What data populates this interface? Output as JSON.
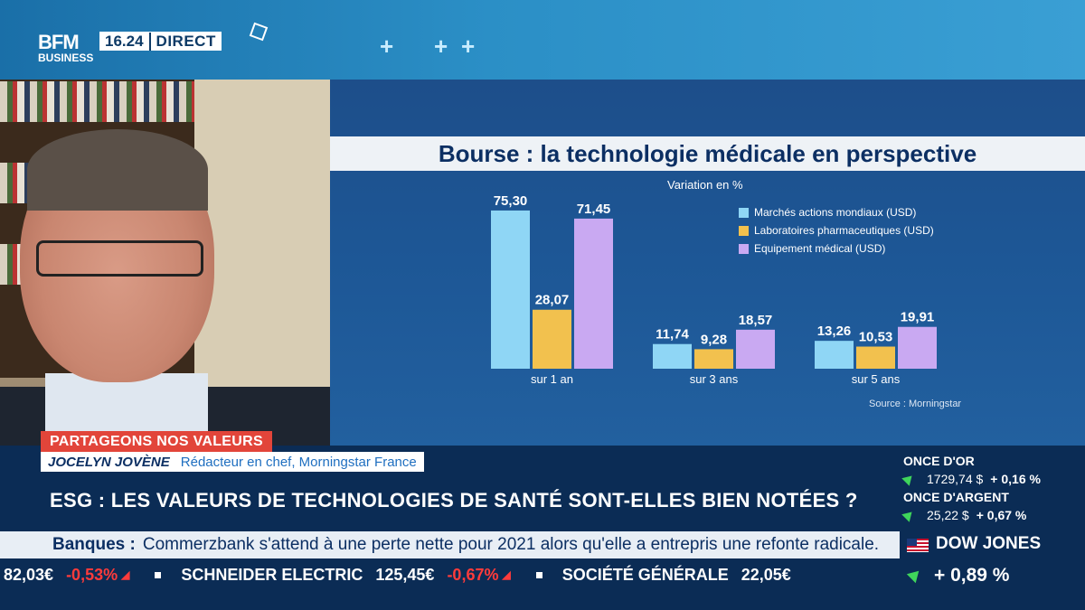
{
  "broadcast": {
    "logo_line1": "BFM",
    "logo_line2": "BUSINESS",
    "time": "16.24",
    "live_label": "DIRECT",
    "colors": {
      "navy": "#0b2c55",
      "red_tag": "#e2453a",
      "up": "#3fd55b",
      "down": "#ff3b3b"
    }
  },
  "chart_data": {
    "type": "bar",
    "title": "Bourse : la technologie médicale en perspective",
    "subtitle": "Variation en %",
    "categories": [
      "sur 1 an",
      "sur 3 ans",
      "sur 5 ans"
    ],
    "series": [
      {
        "name": "Marchés actions mondiaux (USD)",
        "color": "#8fd6f5",
        "values": [
          75.3,
          11.74,
          13.26
        ],
        "labels": [
          "75,30",
          "11,74",
          "13,26"
        ]
      },
      {
        "name": "Laboratoires pharmaceutiques (USD)",
        "color": "#f2c14e",
        "values": [
          28.07,
          9.28,
          10.53
        ],
        "labels": [
          "28,07",
          "9,28",
          "10,53"
        ]
      },
      {
        "name": "Equipement médical (USD)",
        "color": "#c9a9f2",
        "values": [
          71.45,
          18.57,
          19.91
        ],
        "labels": [
          "71,45",
          "18,57",
          "19,91"
        ]
      }
    ],
    "ylim": [
      0,
      80
    ],
    "grid": false,
    "legend_position": "top-right",
    "source": "Source : Morningstar"
  },
  "lower_third": {
    "tag": "PARTAGEONS NOS VALEURS",
    "speaker_name": "JOCELYN JOVÈNE",
    "speaker_role": "Rédacteur en chef, Morningstar France",
    "headline": "ESG : LES VALEURS DE TECHNOLOGIES DE SANTÉ SONT-ELLES BIEN NOTÉES ?"
  },
  "markets": [
    {
      "name": "ONCE D'OR",
      "value": "1729,74 $",
      "change": "+ 0,16 %"
    },
    {
      "name": "ONCE D'ARGENT",
      "value": "25,22 $",
      "change": "+ 0,67 %"
    }
  ],
  "news_ticker": {
    "label": "Banques :",
    "text": "Commerzbank s'attend à une perte nette pour 2021 alors qu'elle a entrepris une refonte radicale."
  },
  "index": {
    "name": "DOW JONES",
    "change": "+ 0,89 %",
    "icon": "us-flag-icon"
  },
  "stock_ticker": [
    {
      "price": "82,03€",
      "change": "-0,53%"
    },
    {
      "name": "SCHNEIDER ELECTRIC",
      "price": "125,45€",
      "change": "-0,67%"
    },
    {
      "name": "SOCIÉTÉ GÉNÉRALE",
      "price": "22,05€",
      "change": ""
    }
  ]
}
